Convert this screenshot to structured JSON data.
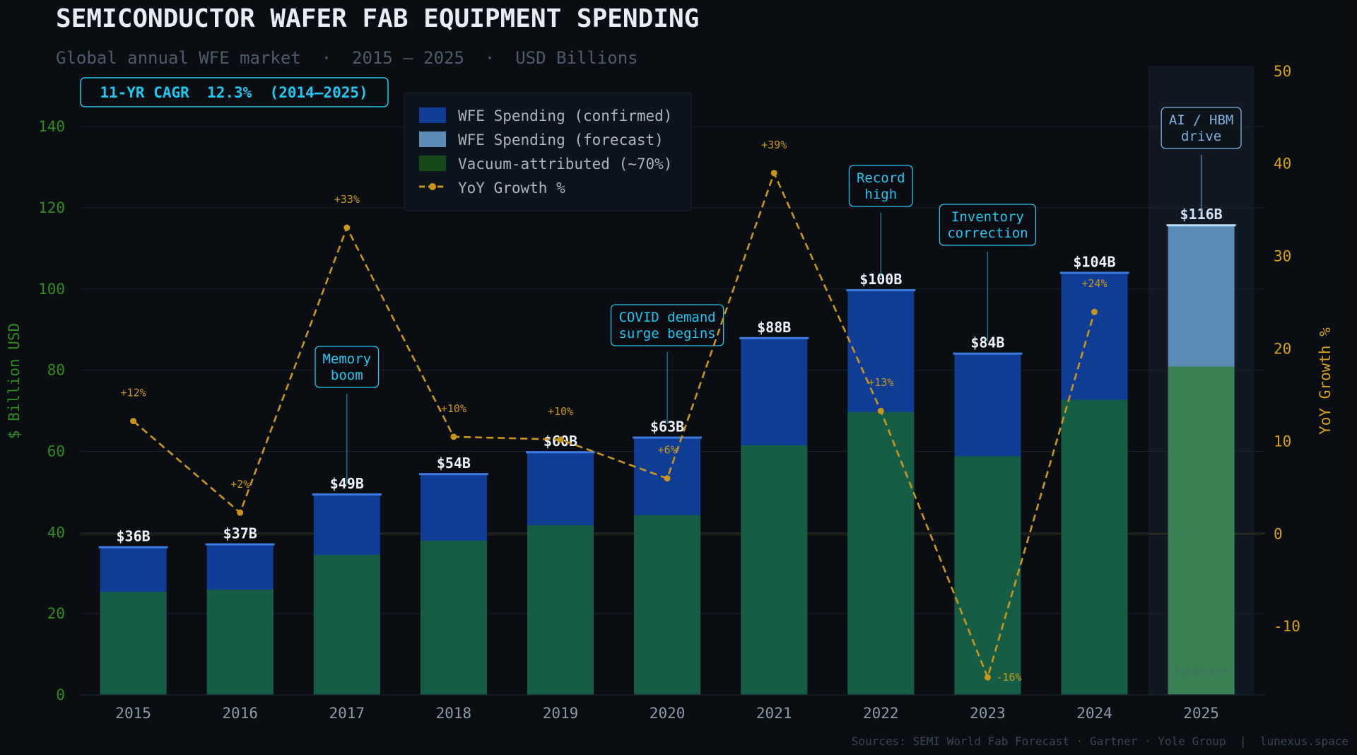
{
  "title": "SEMICONDUCTOR WAFER FAB EQUIPMENT SPENDING",
  "subtitle": "Global annual WFE market  ·  2015 – 2025  ·  USD Billions",
  "cagr_badge": "11-YR CAGR  12.3%  (2014–2025)",
  "source": "Sources: SEMI World Fab Forecast · Gartner · Yole Group  |  lunexus.space",
  "colors": {
    "background": "#0a0d12",
    "confirmed": "#0f3d96",
    "confirmed_cap": "#3d7be0",
    "forecast": "#5b8ab5",
    "forecast_cap": "#b8e0f5",
    "vacuum": "#155e45",
    "vacuum_forecast": "#3a8055",
    "vacuum_legend": "#154a18",
    "yoy_line": "#c9961a",
    "left_axis": "#2e8b1e",
    "right_axis": "#d4a017",
    "annotation": "#1ec8f0",
    "annotation_forecast": "#7fb0e0"
  },
  "chart_data": {
    "type": "bar",
    "categories": [
      "2015",
      "2016",
      "2017",
      "2018",
      "2019",
      "2020",
      "2021",
      "2022",
      "2023",
      "2024",
      "2025"
    ],
    "series": [
      {
        "name": "WFE Spending (confirmed)",
        "values": [
          36.3,
          37.0,
          49.3,
          54.3,
          59.7,
          63.3,
          87.8,
          99.6,
          84.0,
          103.9,
          null
        ]
      },
      {
        "name": "WFE Spending (forecast)",
        "values": [
          null,
          null,
          null,
          null,
          null,
          null,
          null,
          null,
          null,
          null,
          115.6
        ]
      },
      {
        "name": "Vacuum-attributed (~70%)",
        "values": [
          25.4,
          25.9,
          34.5,
          38.0,
          41.8,
          44.3,
          61.5,
          69.7,
          58.8,
          72.7,
          80.9
        ]
      },
      {
        "name": "YoY Growth %",
        "axis": "right",
        "type": "line",
        "values": [
          12.2,
          2.3,
          33.1,
          10.5,
          10.2,
          6.0,
          39.0,
          13.3,
          -15.5,
          24.0,
          null
        ]
      }
    ],
    "bar_labels": [
      "$36B",
      "$37B",
      "$49B",
      "$54B",
      "$60B",
      "$63B",
      "$88B",
      "$100B",
      "$84B",
      "$104B",
      "$116B"
    ],
    "yoy_labels": [
      "+12%",
      "+2%",
      "+33%",
      "+10%",
      "+10%",
      "+6%",
      "+39%",
      "+13%",
      "-16%",
      "+24%",
      ""
    ],
    "ylabel": "$ Billion USD",
    "y2label": "YoY Growth %",
    "ylim": [
      0,
      155
    ],
    "y2lim": [
      -17.4,
      50.6
    ],
    "yticks": [
      0,
      20,
      40,
      60,
      80,
      100,
      120,
      140
    ],
    "y2ticks": [
      -10,
      0,
      10,
      20,
      30,
      40,
      50
    ],
    "grid": true,
    "legend_placement": "top-center",
    "forecast_label": "FORECAST",
    "forecast_category": "2025",
    "annotations": [
      {
        "category": "2017",
        "lines": [
          "Memory",
          "boom"
        ]
      },
      {
        "category": "2020",
        "lines": [
          "COVID demand",
          "surge begins"
        ]
      },
      {
        "category": "2022",
        "lines": [
          "Record",
          "high"
        ]
      },
      {
        "category": "2023",
        "lines": [
          "Inventory",
          "correction"
        ]
      },
      {
        "category": "2025",
        "lines": [
          "AI / HBM",
          "drive"
        ]
      }
    ]
  }
}
